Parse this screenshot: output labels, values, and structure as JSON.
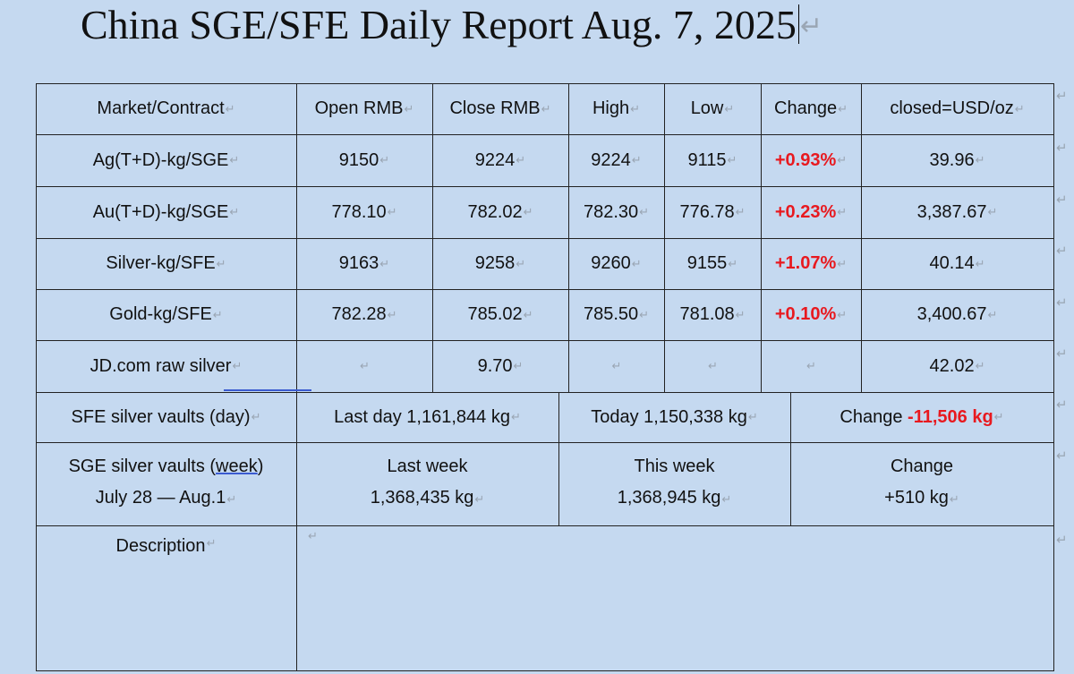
{
  "report": {
    "title": "China SGE/SFE Daily Report Aug. 7, 2025",
    "para_mark": "↵"
  },
  "table": {
    "headers": [
      "Market/Contract",
      "Open RMB",
      "Close RMB",
      "High",
      "Low",
      "Change",
      "closed=USD/oz"
    ],
    "rows": [
      {
        "market": "Ag(T+D)-kg/SGE",
        "open": "9150",
        "close": "9224",
        "high": "9224",
        "low": "9115",
        "change": "+0.93%",
        "usd_oz": "39.96"
      },
      {
        "market": "Au(T+D)-kg/SGE",
        "open": "778.10",
        "close": "782.02",
        "high": "782.30",
        "low": "776.78",
        "change": "+0.23%",
        "usd_oz": "3,387.67"
      },
      {
        "market": "Silver-kg/SFE",
        "open": "9163",
        "close": "9258",
        "high": "9260",
        "low": "9155",
        "change": "+1.07%",
        "usd_oz": "40.14"
      },
      {
        "market": "Gold-kg/SFE",
        "open": "782.28",
        "close": "785.02",
        "high": "785.50",
        "low": "781.08",
        "change": "+0.10%",
        "usd_oz": "3,400.67"
      },
      {
        "market": "JD.com raw silver",
        "open": "",
        "close": "9.70",
        "high": "",
        "low": "",
        "change": "",
        "usd_oz": "42.02"
      }
    ],
    "sfe_vaults": {
      "label": "SFE silver vaults (day)",
      "last_day": "Last day 1,161,844 kg",
      "today": "Today 1,150,338 kg",
      "change_label": "Change ",
      "change_value": "-11,506 kg"
    },
    "sge_vaults": {
      "label_prefix": "SGE silver vaults (",
      "label_week": "week",
      "label_suffix": ")",
      "period": "July 28 — Aug.1",
      "last_week_label": "Last week",
      "last_week_value": "1,368,435 kg",
      "this_week_label": "This week",
      "this_week_value": "1,368,945 kg",
      "change_label": "Change",
      "change_value": "+510 kg"
    },
    "description": {
      "label": "Description",
      "text": ""
    }
  },
  "colors": {
    "page_background": "#c5d9f0",
    "change_positive": "#e8191f",
    "grid_line": "#222222"
  }
}
